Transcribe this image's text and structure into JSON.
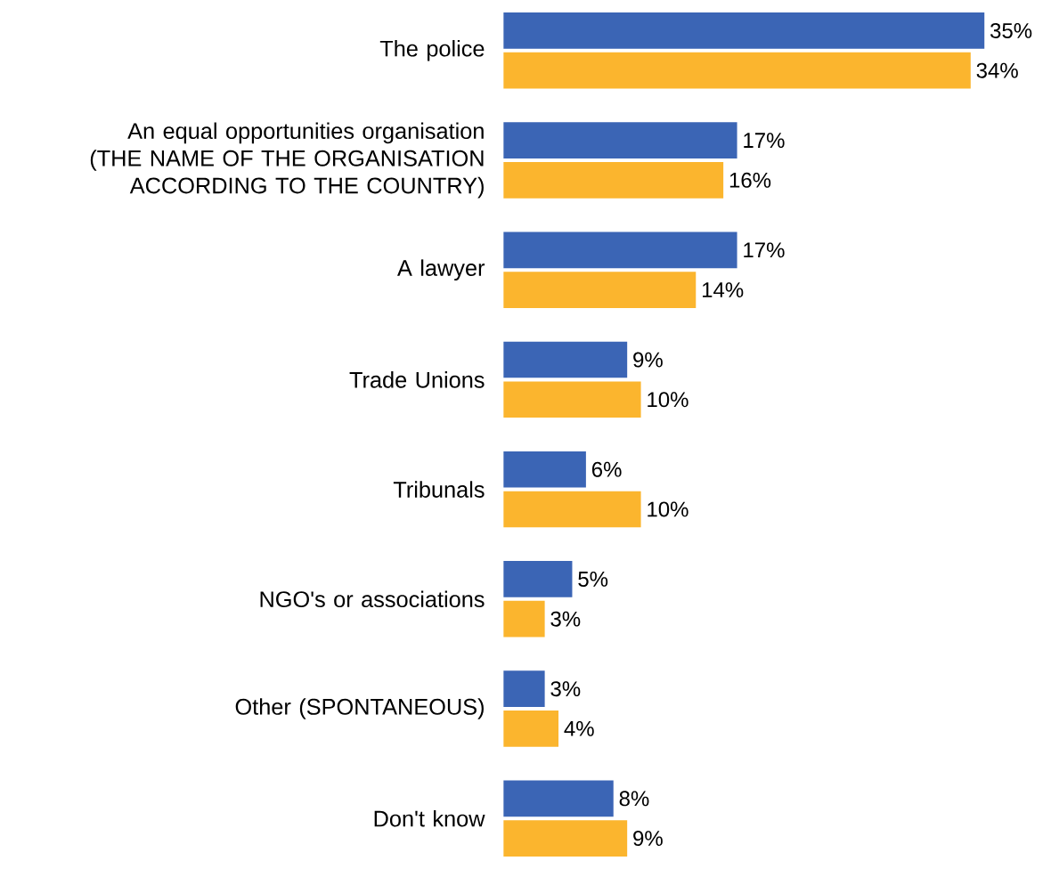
{
  "chart_data": {
    "type": "bar",
    "orientation": "horizontal",
    "categories": [
      "The police",
      "An equal opportunities organisation (THE NAME OF THE ORGANISATION ACCORDING TO THE COUNTRY)",
      "A lawyer",
      "Trade Unions",
      "Tribunals",
      "NGO's or associations",
      "Other (SPONTANEOUS)",
      "Don't know"
    ],
    "series": [
      {
        "color": "#3b65b5",
        "values": [
          35,
          17,
          17,
          9,
          6,
          5,
          3,
          8
        ],
        "value_labels": [
          "35%",
          "17%",
          "17%",
          "9%",
          "6%",
          "5%",
          "3%",
          "8%"
        ]
      },
      {
        "color": "#fbb52e",
        "values": [
          34,
          16,
          14,
          10,
          10,
          3,
          4,
          9
        ],
        "value_labels": [
          "34%",
          "16%",
          "14%",
          "10%",
          "10%",
          "3%",
          "4%",
          "9%"
        ]
      }
    ],
    "tick_labels": "y"
  }
}
